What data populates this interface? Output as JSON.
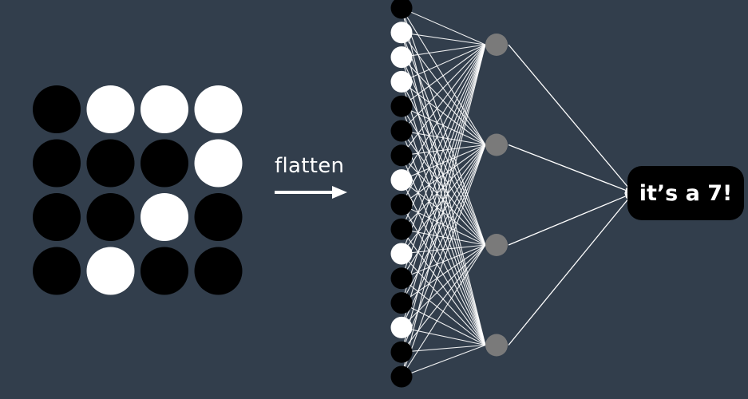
{
  "grid": {
    "rows": [
      [
        0,
        1,
        1,
        1
      ],
      [
        0,
        0,
        0,
        1
      ],
      [
        0,
        0,
        1,
        0
      ],
      [
        0,
        1,
        0,
        0
      ]
    ],
    "colors": {
      "on": "#ffffff",
      "off": "#000000"
    }
  },
  "flatten": {
    "label": "flatten"
  },
  "network": {
    "hidden_count": 4,
    "hidden_color": "#7a7a7a",
    "edge_color": "#ffffff"
  },
  "output": {
    "label": "it’s a 7!"
  },
  "colors": {
    "background": "#323e4c"
  }
}
